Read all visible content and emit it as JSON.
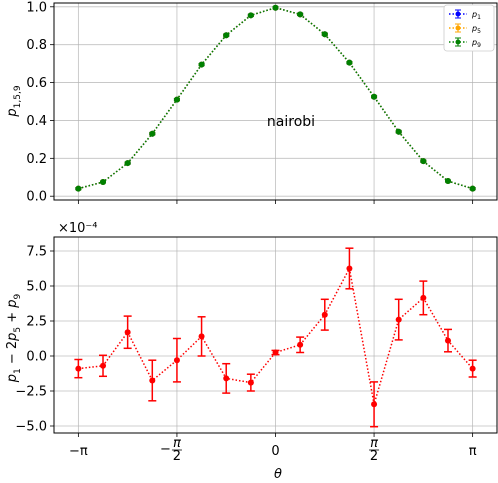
{
  "chart_data": [
    {
      "type": "line",
      "annotation": "nairobi",
      "ylabel": "p_{1,5,9}",
      "ylim": [
        0,
        1.0
      ],
      "yticks": [
        "0.0",
        "0.2",
        "0.4",
        "0.6",
        "0.8",
        "1.0"
      ],
      "x": [
        -3.1416,
        -2.7489,
        -2.3562,
        -1.9635,
        -1.5708,
        -1.1781,
        -0.7854,
        -0.3927,
        0.0,
        0.3927,
        0.7854,
        1.1781,
        1.5708,
        1.9635,
        2.3562,
        2.7489,
        3.1416
      ],
      "legend": {
        "position": "top-right",
        "entries": [
          "p1",
          "p5",
          "p9"
        ]
      },
      "series": [
        {
          "name": "p1",
          "color": "#0000ff",
          "values": [
            0.04,
            0.075,
            0.175,
            0.33,
            0.51,
            0.695,
            0.85,
            0.955,
            0.995,
            0.96,
            0.855,
            0.705,
            0.525,
            0.34,
            0.185,
            0.08,
            0.04
          ]
        },
        {
          "name": "p5",
          "color": "#ffa500",
          "values": [
            0.04,
            0.075,
            0.175,
            0.33,
            0.51,
            0.695,
            0.85,
            0.955,
            0.995,
            0.96,
            0.855,
            0.705,
            0.525,
            0.34,
            0.185,
            0.08,
            0.04
          ]
        },
        {
          "name": "p9",
          "color": "#008000",
          "values": [
            0.04,
            0.075,
            0.175,
            0.33,
            0.51,
            0.695,
            0.85,
            0.955,
            0.995,
            0.96,
            0.855,
            0.705,
            0.525,
            0.34,
            0.185,
            0.08,
            0.04
          ]
        }
      ]
    },
    {
      "type": "line",
      "ylabel": "p_1 − 2p_5 + p_9",
      "xlabel": "θ",
      "scale_label": "×10⁻⁴",
      "ylim": [
        -5.5,
        8.5
      ],
      "yticks": [
        "−5.0",
        "−2.5",
        "0.0",
        "2.5",
        "5.0",
        "7.5"
      ],
      "xticks": [
        "−π",
        "−π/2",
        "0",
        "π/2",
        "π"
      ],
      "x": [
        -3.1416,
        -2.7489,
        -2.3562,
        -1.9635,
        -1.5708,
        -1.1781,
        -0.7854,
        -0.3927,
        0.0,
        0.3927,
        0.7854,
        1.1781,
        1.5708,
        1.9635,
        2.3562,
        2.7489,
        3.1416
      ],
      "series": [
        {
          "color": "#ff0000",
          "values": [
            -0.9,
            -0.7,
            1.7,
            -1.75,
            -0.3,
            1.4,
            -1.6,
            -1.9,
            0.25,
            0.8,
            2.95,
            6.25,
            -3.45,
            2.6,
            4.15,
            1.1,
            -0.9
          ],
          "errors": [
            0.65,
            0.75,
            1.15,
            1.45,
            1.55,
            1.4,
            1.05,
            0.6,
            0.15,
            0.55,
            1.1,
            1.45,
            1.6,
            1.45,
            1.2,
            0.8,
            0.6
          ]
        }
      ]
    }
  ]
}
